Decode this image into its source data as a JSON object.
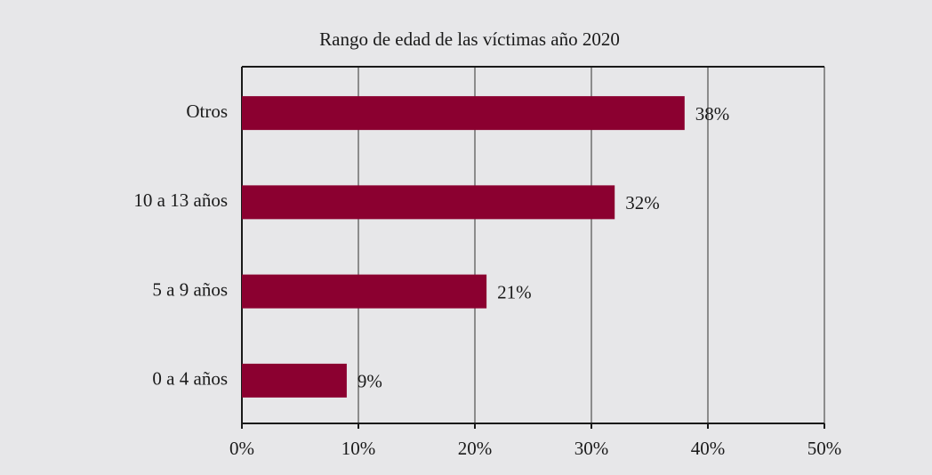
{
  "chart_data": {
    "type": "bar",
    "orientation": "horizontal",
    "title": "Rango de edad de las víctimas año 2020",
    "categories": [
      "Otros",
      "10 a 13 años",
      "5 a 9 años",
      "0 a 4 años"
    ],
    "values": [
      38,
      32,
      21,
      9
    ],
    "value_labels": [
      "38%",
      "32%",
      "21%",
      "9%"
    ],
    "color": "#8b0030",
    "xlim": [
      0,
      50
    ],
    "xticks": [
      {
        "value": 0,
        "label": "0%"
      },
      {
        "value": 10,
        "label": "10%"
      },
      {
        "value": 20,
        "label": "20%"
      },
      {
        "value": 30,
        "label": "30%"
      },
      {
        "value": 40,
        "label": "40%"
      },
      {
        "value": 50,
        "label": "50%"
      }
    ],
    "grid": true
  }
}
